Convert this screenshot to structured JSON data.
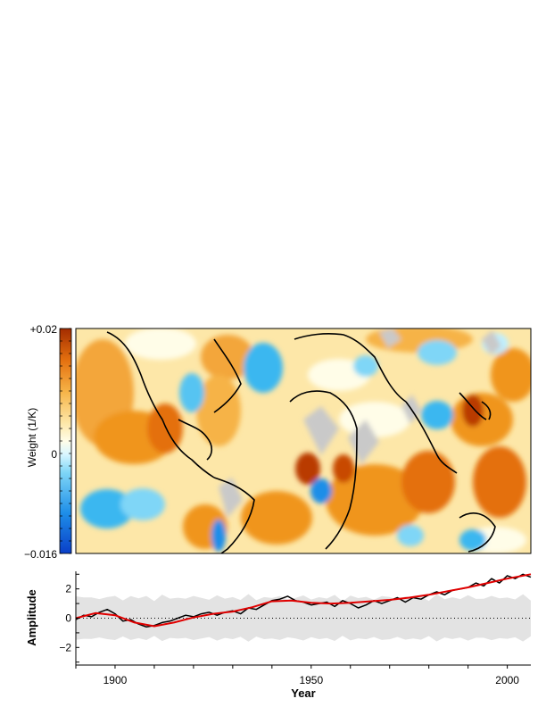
{
  "map": {
    "colorbar_max_label": "+0.02",
    "colorbar_zero_label": "0",
    "colorbar_min_label": "−0.016",
    "colorbar_label": "Weight (1/K)",
    "colorbar_range": [
      -0.016,
      0.02
    ],
    "colors": {
      "strong_positive": "#b93a00",
      "positive": "#f0951a",
      "weak_positive": "#fde7a8",
      "neutral": "#fffde8",
      "weak_negative": "#bfefff",
      "negative": "#3bb7f0",
      "strong_negative": "#0a4fd6",
      "missing": "#c9c9c9",
      "coastline": "#000000"
    }
  },
  "chart_data": {
    "type": "line",
    "title": "",
    "xlabel": "Year",
    "ylabel": "Amplitude",
    "xlim": [
      1890,
      2006
    ],
    "ylim": [
      -3.2,
      3.2
    ],
    "xticks": [
      1900,
      1950,
      2000
    ],
    "yticks": [
      -2,
      0,
      2
    ],
    "zero_line": "dotted",
    "uncertainty_band": {
      "lower": -1.4,
      "upper": 1.4,
      "color": "#e3e3e3"
    },
    "series": [
      {
        "color": "#000000",
        "x": [
          1890,
          1892,
          1894,
          1896,
          1898,
          1900,
          1902,
          1904,
          1906,
          1908,
          1910,
          1912,
          1914,
          1916,
          1918,
          1920,
          1922,
          1924,
          1926,
          1928,
          1930,
          1932,
          1934,
          1936,
          1938,
          1940,
          1942,
          1944,
          1946,
          1948,
          1950,
          1952,
          1954,
          1956,
          1958,
          1960,
          1962,
          1964,
          1966,
          1968,
          1970,
          1972,
          1974,
          1976,
          1978,
          1980,
          1982,
          1984,
          1986,
          1988,
          1990,
          1992,
          1994,
          1996,
          1998,
          2000,
          2002,
          2004,
          2006
        ],
        "values": [
          -0.1,
          0.2,
          0.1,
          0.4,
          0.6,
          0.3,
          -0.2,
          -0.1,
          -0.4,
          -0.6,
          -0.5,
          -0.3,
          -0.2,
          0.0,
          0.2,
          0.1,
          0.3,
          0.4,
          0.2,
          0.4,
          0.5,
          0.3,
          0.7,
          0.6,
          0.9,
          1.2,
          1.3,
          1.5,
          1.2,
          1.1,
          0.9,
          1.0,
          1.1,
          0.8,
          1.2,
          1.0,
          0.7,
          0.9,
          1.2,
          1.0,
          1.2,
          1.4,
          1.1,
          1.4,
          1.3,
          1.6,
          1.8,
          1.6,
          1.9,
          2.0,
          2.1,
          2.4,
          2.2,
          2.7,
          2.4,
          2.9,
          2.7,
          3.0,
          2.8
        ]
      },
      {
        "color": "#e00000",
        "x": [
          1890,
          1895,
          1900,
          1905,
          1910,
          1915,
          1920,
          1925,
          1930,
          1935,
          1940,
          1945,
          1950,
          1955,
          1960,
          1965,
          1970,
          1975,
          1980,
          1985,
          1990,
          1995,
          2000,
          2006
        ],
        "values": [
          0.0,
          0.35,
          0.2,
          -0.3,
          -0.55,
          -0.3,
          0.05,
          0.3,
          0.45,
          0.75,
          1.15,
          1.2,
          1.05,
          1.0,
          1.05,
          1.15,
          1.25,
          1.4,
          1.6,
          1.85,
          2.1,
          2.4,
          2.7,
          3.0
        ]
      }
    ]
  }
}
